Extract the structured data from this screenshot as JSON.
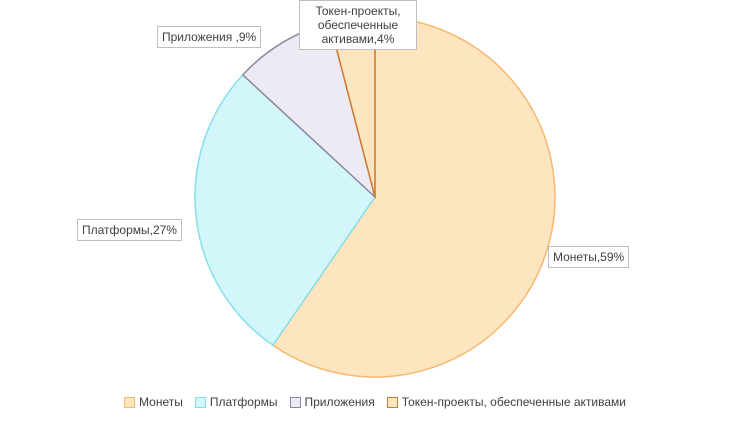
{
  "chart_data": {
    "type": "pie",
    "slices": [
      {
        "label": "Монеты",
        "value": 59,
        "data_label": "Монеты,59%",
        "fill": "#fde5bf",
        "stroke": "#f6b870"
      },
      {
        "label": "Платформы",
        "value": 27,
        "data_label": "Платформы,27%",
        "fill": "#d2f6fa",
        "stroke": "#86dfea"
      },
      {
        "label": "Приложения",
        "value": 9,
        "data_label": "Приложения ,9%",
        "fill": "#eeeaf4",
        "stroke": "#8c86a0"
      },
      {
        "label": "Токен-проекты, обеспеченные активами",
        "value": 4,
        "data_label": "Токен-проекты, обеспеченные активами,4%",
        "fill": "#fde5bf",
        "stroke": "#d07a32"
      }
    ],
    "legend": {
      "position": "bottom",
      "items": [
        "Монеты",
        "Платформы",
        "Приложения",
        "Токен-проекты, обеспеченные активами"
      ]
    }
  }
}
